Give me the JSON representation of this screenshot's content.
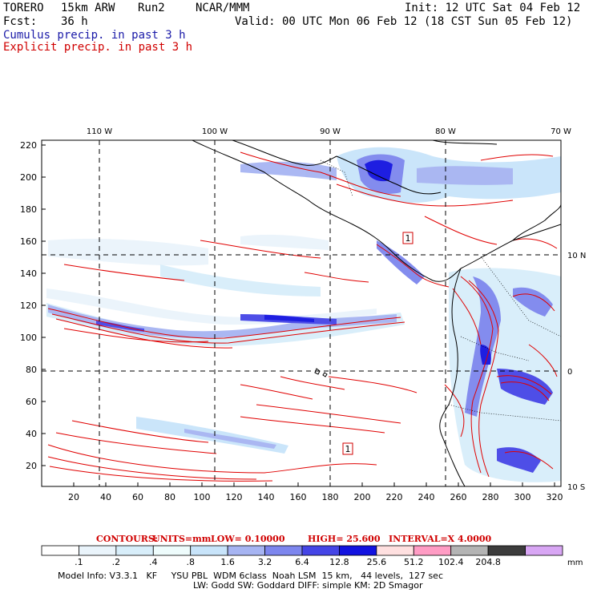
{
  "header": {
    "model": "TORERO",
    "resolution": "15km ARW",
    "run": "Run2",
    "org": "NCAR/MMM",
    "init": "Init: 12 UTC Sat 04 Feb 12",
    "fcst_label": "Fcst:",
    "fcst_value": "36 h",
    "valid": "Valid: 00 UTC Mon 06 Feb 12 (18 CST Sun 05 Feb 12)",
    "field1": "Cumulus precip. in past 3 h",
    "field2": "Explicit precip. in past 3 h"
  },
  "colors": {
    "field1": "#1a1aa8",
    "field2": "#d00000",
    "contour": "#e00000"
  },
  "map": {
    "top_lon_labels": [
      "110 W",
      "100 W",
      "90 W",
      "80 W",
      "70 W"
    ],
    "right_lat_labels": [
      "10 N",
      "0",
      "10 S"
    ],
    "y_grid_labels": [
      "220",
      "200",
      "180",
      "160",
      "140",
      "120",
      "100",
      "80",
      "60",
      "40",
      "20"
    ],
    "x_grid_labels": [
      "20",
      "40",
      "60",
      "80",
      "100",
      "120",
      "140",
      "160",
      "180",
      "200",
      "220",
      "240",
      "260",
      "280",
      "300",
      "320"
    ],
    "markers": [
      "1",
      "1"
    ]
  },
  "contours_info": {
    "label": "CONTOURS:",
    "units": "UNITS=mm",
    "low": "LOW= 0.10000",
    "high": "HIGH= 25.600",
    "interval": "INTERVAL=X 4.0000"
  },
  "colorbar": {
    "labels": [
      ".1",
      ".2",
      ".4",
      ".8",
      "1.6",
      "3.2",
      "6.4",
      "12.8",
      "25.6",
      "51.2",
      "102.4",
      "204.8"
    ],
    "unit": "mm",
    "colors": [
      "#ffffff",
      "#eaf4fb",
      "#d8eefa",
      "#eefcfc",
      "#c8e4fa",
      "#a6b4f2",
      "#7d86ee",
      "#4545e6",
      "#1212e0",
      "#ffe0e0",
      "#ff9cc4",
      "#b4b4b4",
      "#3c3c3c",
      "#d8a6f4"
    ]
  },
  "footer": {
    "line1": "Model Info: V3.3.1   KF     YSU PBL  WDM 6class  Noah LSM  15 km,   44 levels,  127 sec",
    "line2": "LW: Godd SW: Goddard DIFF: simple KM: 2D Smagor"
  }
}
